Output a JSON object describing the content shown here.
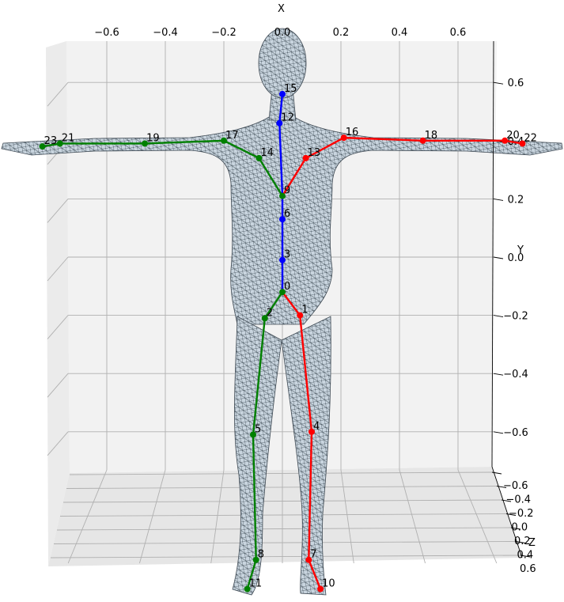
{
  "chart_data": {
    "type": "scatter",
    "title": "",
    "xlabel": "X",
    "ylabel": "Y",
    "zlabel": "Z",
    "xlim": [
      -0.75,
      0.75
    ],
    "ylim": [
      -0.75,
      0.75
    ],
    "zlim": [
      -0.65,
      0.65
    ],
    "x_ticks": [
      "−0.6",
      "−0.4",
      "−0.2",
      "0.0",
      "0.2",
      "0.4",
      "0.6"
    ],
    "y_ticks": [
      "−0.6",
      "−0.4",
      "−0.2",
      "0.0",
      "0.2",
      "0.4",
      "0.6"
    ],
    "z_ticks": [
      "−0.6",
      "−0.4",
      "−0.2",
      "0.0",
      "0.2",
      "0.4",
      "0.6"
    ],
    "grid": true,
    "background_mesh": "human body surface mesh (T-pose)",
    "joints": [
      {
        "id": "0",
        "x": 0.0,
        "y": -0.12
      },
      {
        "id": "1",
        "x": 0.06,
        "y": -0.2
      },
      {
        "id": "2",
        "x": -0.06,
        "y": -0.21
      },
      {
        "id": "3",
        "x": 0.0,
        "y": -0.01
      },
      {
        "id": "4",
        "x": 0.1,
        "y": -0.6
      },
      {
        "id": "5",
        "x": -0.1,
        "y": -0.61
      },
      {
        "id": "6",
        "x": 0.0,
        "y": 0.13
      },
      {
        "id": "7",
        "x": 0.09,
        "y": -1.04
      },
      {
        "id": "8",
        "x": -0.09,
        "y": -1.04
      },
      {
        "id": "9",
        "x": 0.0,
        "y": 0.21
      },
      {
        "id": "10",
        "x": 0.13,
        "y": -1.14
      },
      {
        "id": "11",
        "x": -0.12,
        "y": -1.14
      },
      {
        "id": "12",
        "x": -0.01,
        "y": 0.46
      },
      {
        "id": "13",
        "x": 0.08,
        "y": 0.34
      },
      {
        "id": "14",
        "x": -0.08,
        "y": 0.34
      },
      {
        "id": "15",
        "x": 0.0,
        "y": 0.56
      },
      {
        "id": "16",
        "x": 0.21,
        "y": 0.41
      },
      {
        "id": "17",
        "x": -0.2,
        "y": 0.4
      },
      {
        "id": "18",
        "x": 0.48,
        "y": 0.4
      },
      {
        "id": "19",
        "x": -0.47,
        "y": 0.39
      },
      {
        "id": "20",
        "x": 0.76,
        "y": 0.4
      },
      {
        "id": "21",
        "x": -0.76,
        "y": 0.39
      },
      {
        "id": "22",
        "x": 0.82,
        "y": 0.39
      },
      {
        "id": "23",
        "x": -0.82,
        "y": 0.38
      }
    ],
    "series": [
      {
        "color": "#0000ff",
        "joints": [
          "0",
          "3",
          "6",
          "9",
          "12",
          "15"
        ]
      },
      {
        "color": "#ff0000",
        "joints": [
          "0",
          "1",
          "4",
          "7",
          "10"
        ]
      },
      {
        "color": "#008000",
        "joints": [
          "0",
          "2",
          "5",
          "8",
          "11"
        ]
      },
      {
        "color": "#ff0000",
        "joints": [
          "9",
          "13",
          "16",
          "18",
          "20",
          "22"
        ]
      },
      {
        "color": "#008000",
        "joints": [
          "9",
          "14",
          "17",
          "19",
          "21",
          "23"
        ]
      }
    ]
  }
}
